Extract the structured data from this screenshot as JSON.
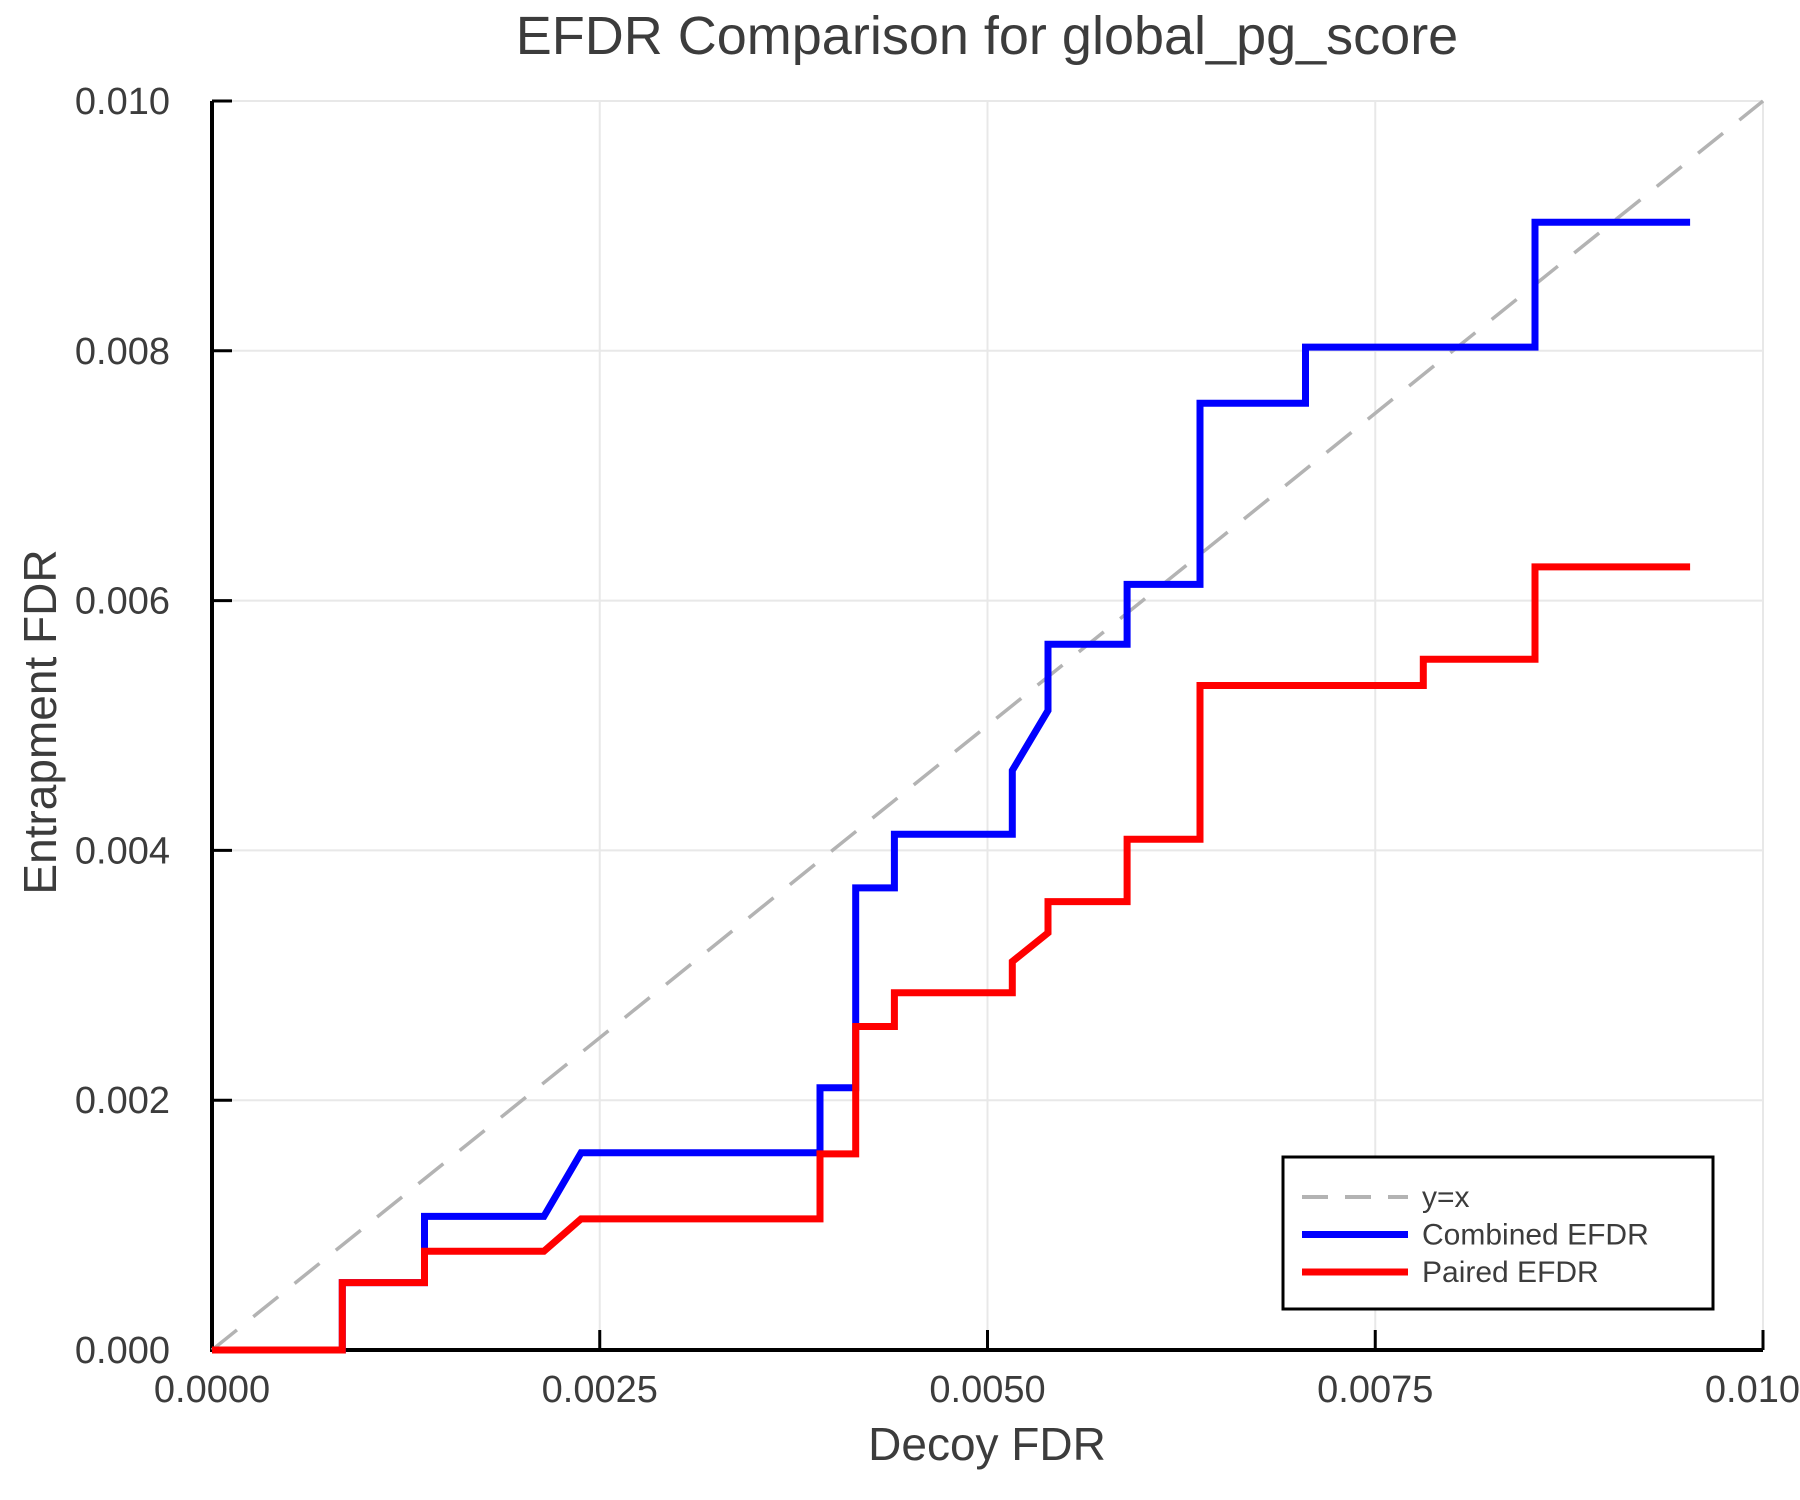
{
  "chart_data": {
    "type": "line",
    "title": "EFDR Comparison for global_pg_score",
    "xlabel": "Decoy FDR",
    "ylabel": "Entrapment FDR",
    "xlim": [
      0.0,
      0.01
    ],
    "ylim": [
      0.0,
      0.01
    ],
    "grid": true,
    "grid_color": "#e8e8e8",
    "axis_color": "#000000",
    "text_color": "#3c3c3c",
    "background_color": "#ffffff",
    "x_tick_values": [
      0.0,
      0.0025,
      0.005,
      0.0075,
      0.01
    ],
    "x_tick_labels": [
      "0.0000",
      "0.0025",
      "0.0050",
      "0.0075",
      "0.0100"
    ],
    "y_tick_values": [
      0.0,
      0.002,
      0.004,
      0.006,
      0.008,
      0.01
    ],
    "y_tick_labels": [
      "0.000",
      "0.002",
      "0.004",
      "0.006",
      "0.008",
      "0.010"
    ],
    "legend_position": "bottom-right",
    "series": [
      {
        "name": "y=x",
        "color": "#b3b3b3",
        "style": "dashed",
        "width": 3.5,
        "points": [
          [
            0.0,
            0.0
          ],
          [
            0.01,
            0.01
          ]
        ]
      },
      {
        "name": "Combined EFDR",
        "color": "#0000ff",
        "style": "solid",
        "width": 7,
        "points": [
          [
            0.0,
            0.0
          ],
          [
            0.00084,
            0.0
          ],
          [
            0.00084,
            0.00054
          ],
          [
            0.00137,
            0.00054
          ],
          [
            0.00137,
            0.00107
          ],
          [
            0.00214,
            0.00107
          ],
          [
            0.00238,
            0.00158
          ],
          [
            0.00392,
            0.00158
          ],
          [
            0.00392,
            0.0021
          ],
          [
            0.00415,
            0.0021
          ],
          [
            0.00415,
            0.0037
          ],
          [
            0.0044,
            0.0037
          ],
          [
            0.0044,
            0.00413
          ],
          [
            0.00516,
            0.00413
          ],
          [
            0.00516,
            0.00464
          ],
          [
            0.00539,
            0.00512
          ],
          [
            0.00539,
            0.00565
          ],
          [
            0.0059,
            0.00565
          ],
          [
            0.0059,
            0.00613
          ],
          [
            0.00637,
            0.00613
          ],
          [
            0.00637,
            0.00758
          ],
          [
            0.00705,
            0.00758
          ],
          [
            0.00705,
            0.00803
          ],
          [
            0.00853,
            0.00803
          ],
          [
            0.00853,
            0.00903
          ],
          [
            0.00953,
            0.00903
          ]
        ]
      },
      {
        "name": "Paired EFDR",
        "color": "#ff0000",
        "style": "solid",
        "width": 7,
        "points": [
          [
            0.0,
            0.0
          ],
          [
            0.00084,
            0.0
          ],
          [
            0.00084,
            0.00054
          ],
          [
            0.00137,
            0.00054
          ],
          [
            0.00137,
            0.00079
          ],
          [
            0.00214,
            0.00079
          ],
          [
            0.00238,
            0.00105
          ],
          [
            0.00392,
            0.00105
          ],
          [
            0.00392,
            0.00157
          ],
          [
            0.00415,
            0.00157
          ],
          [
            0.00415,
            0.00259
          ],
          [
            0.0044,
            0.00259
          ],
          [
            0.0044,
            0.00286
          ],
          [
            0.00516,
            0.00286
          ],
          [
            0.00516,
            0.00311
          ],
          [
            0.00539,
            0.00334
          ],
          [
            0.00539,
            0.00359
          ],
          [
            0.0059,
            0.00359
          ],
          [
            0.0059,
            0.00409
          ],
          [
            0.00637,
            0.00409
          ],
          [
            0.00637,
            0.00532
          ],
          [
            0.00781,
            0.00532
          ],
          [
            0.00781,
            0.00553
          ],
          [
            0.00853,
            0.00553
          ],
          [
            0.00853,
            0.00627
          ],
          [
            0.00953,
            0.00627
          ]
        ]
      }
    ]
  }
}
